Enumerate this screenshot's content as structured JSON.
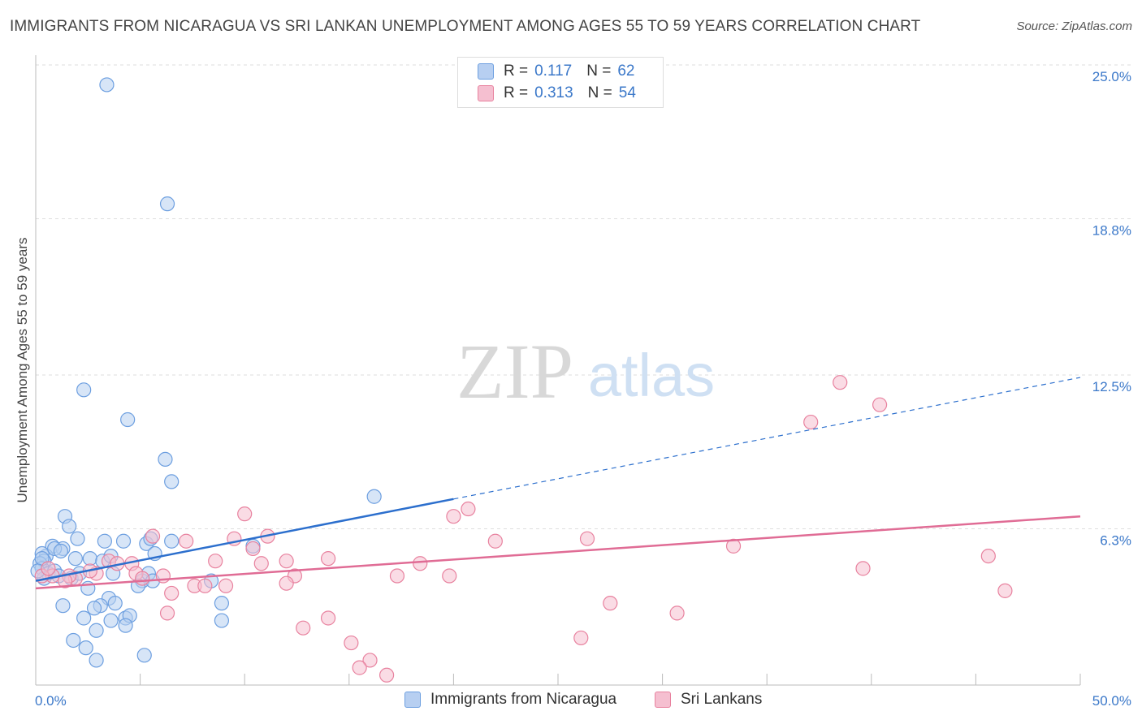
{
  "header": {
    "title": "IMMIGRANTS FROM NICARAGUA VS SRI LANKAN UNEMPLOYMENT AMONG AGES 55 TO 59 YEARS CORRELATION CHART",
    "source": "Source: ZipAtlas.com"
  },
  "watermark": {
    "zip": "ZIP",
    "atlas": "atlas"
  },
  "legend": {
    "rows": [
      {
        "r_label": "R = ",
        "r_value": "0.117",
        "n_label": "N = ",
        "n_value": "62"
      },
      {
        "r_label": "R = ",
        "r_value": "0.313",
        "n_label": "N = ",
        "n_value": "54"
      }
    ]
  },
  "chart_data": {
    "type": "scatter",
    "title": "IMMIGRANTS FROM NICARAGUA VS SRI LANKAN UNEMPLOYMENT AMONG AGES 55 TO 59 YEARS CORRELATION CHART",
    "xlabel": "",
    "ylabel": "Unemployment Among Ages 55 to 59 years",
    "xlim": [
      0,
      50
    ],
    "ylim": [
      0,
      25
    ],
    "x_tick_labels": [
      "0.0%",
      "50.0%"
    ],
    "y_tick_values": [
      6.3,
      12.5,
      18.8,
      25.0
    ],
    "y_tick_labels": [
      "6.3%",
      "12.5%",
      "18.8%",
      "25.0%"
    ],
    "grid": true,
    "colors": {
      "blue": "#6d9fe0",
      "blue_fill": "#b7cff1",
      "pink": "#e8829f",
      "pink_fill": "#f5bfd0",
      "blue_line": "#2c6fcd",
      "pink_line": "#e06c95"
    },
    "series": [
      {
        "name": "Immigrants from Nicaragua",
        "color": "blue",
        "trend": {
          "x0": 0,
          "y0": 4.2,
          "x1": 20,
          "y1": 7.5,
          "x_dash_end": 50,
          "y_dash_end": 12.4
        },
        "points": [
          [
            3.4,
            24.2
          ],
          [
            6.3,
            19.4
          ],
          [
            2.3,
            11.9
          ],
          [
            4.4,
            10.7
          ],
          [
            6.2,
            9.1
          ],
          [
            6.5,
            8.2
          ],
          [
            16.2,
            7.6
          ],
          [
            1.4,
            6.8
          ],
          [
            1.6,
            6.4
          ],
          [
            2.0,
            5.9
          ],
          [
            0.8,
            5.6
          ],
          [
            1.3,
            5.5
          ],
          [
            0.5,
            5.2
          ],
          [
            0.3,
            5.3
          ],
          [
            0.4,
            5.0
          ],
          [
            0.2,
            4.9
          ],
          [
            0.3,
            4.7
          ],
          [
            0.6,
            4.5
          ],
          [
            0.9,
            4.6
          ],
          [
            1.1,
            4.4
          ],
          [
            0.4,
            4.3
          ],
          [
            1.7,
            4.3
          ],
          [
            1.9,
            5.1
          ],
          [
            2.6,
            5.1
          ],
          [
            3.2,
            5.0
          ],
          [
            3.3,
            5.8
          ],
          [
            4.2,
            5.8
          ],
          [
            5.3,
            5.7
          ],
          [
            5.5,
            5.9
          ],
          [
            6.5,
            5.8
          ],
          [
            10.4,
            5.6
          ],
          [
            2.1,
            4.5
          ],
          [
            3.7,
            4.5
          ],
          [
            5.1,
            4.2
          ],
          [
            5.4,
            4.5
          ],
          [
            5.6,
            4.2
          ],
          [
            4.9,
            4.0
          ],
          [
            2.5,
            3.9
          ],
          [
            3.5,
            3.5
          ],
          [
            3.8,
            3.3
          ],
          [
            3.1,
            3.2
          ],
          [
            2.8,
            3.1
          ],
          [
            1.3,
            3.2
          ],
          [
            2.3,
            2.7
          ],
          [
            3.6,
            2.6
          ],
          [
            4.3,
            2.7
          ],
          [
            4.5,
            2.8
          ],
          [
            4.3,
            2.4
          ],
          [
            2.9,
            2.2
          ],
          [
            1.8,
            1.8
          ],
          [
            2.4,
            1.5
          ],
          [
            2.9,
            1.0
          ],
          [
            5.2,
            1.2
          ],
          [
            8.4,
            4.2
          ],
          [
            8.9,
            3.3
          ],
          [
            8.9,
            2.6
          ],
          [
            0.9,
            5.5
          ],
          [
            1.2,
            5.4
          ],
          [
            0.3,
            5.1
          ],
          [
            5.7,
            5.3
          ],
          [
            3.6,
            5.2
          ],
          [
            0.1,
            4.6
          ]
        ]
      },
      {
        "name": "Sri Lankans",
        "color": "pink",
        "trend": {
          "x0": 0,
          "y0": 3.9,
          "x1": 50,
          "y1": 6.8
        },
        "points": [
          [
            38.5,
            12.2
          ],
          [
            40.4,
            11.3
          ],
          [
            37.1,
            10.6
          ],
          [
            10.0,
            6.9
          ],
          [
            20.0,
            6.8
          ],
          [
            20.7,
            7.1
          ],
          [
            5.6,
            6.0
          ],
          [
            7.2,
            5.8
          ],
          [
            9.5,
            5.9
          ],
          [
            11.1,
            6.0
          ],
          [
            10.4,
            5.5
          ],
          [
            14.0,
            5.1
          ],
          [
            12.0,
            5.0
          ],
          [
            8.6,
            5.0
          ],
          [
            10.8,
            4.9
          ],
          [
            18.4,
            4.9
          ],
          [
            22.0,
            5.8
          ],
          [
            26.4,
            5.9
          ],
          [
            33.4,
            5.6
          ],
          [
            39.6,
            4.7
          ],
          [
            45.6,
            5.2
          ],
          [
            3.5,
            5.0
          ],
          [
            3.9,
            4.9
          ],
          [
            4.6,
            4.9
          ],
          [
            2.9,
            4.5
          ],
          [
            1.9,
            4.3
          ],
          [
            0.8,
            4.4
          ],
          [
            0.3,
            4.4
          ],
          [
            1.6,
            4.4
          ],
          [
            2.6,
            4.6
          ],
          [
            4.8,
            4.5
          ],
          [
            6.1,
            4.4
          ],
          [
            5.1,
            4.3
          ],
          [
            7.6,
            4.0
          ],
          [
            8.1,
            4.0
          ],
          [
            12.4,
            4.4
          ],
          [
            12.0,
            4.1
          ],
          [
            17.3,
            4.4
          ],
          [
            19.8,
            4.4
          ],
          [
            46.4,
            3.8
          ],
          [
            6.5,
            3.7
          ],
          [
            9.1,
            4.0
          ],
          [
            6.3,
            2.9
          ],
          [
            27.5,
            3.3
          ],
          [
            30.7,
            2.9
          ],
          [
            14.0,
            2.7
          ],
          [
            12.8,
            2.3
          ],
          [
            15.1,
            1.7
          ],
          [
            16.0,
            1.0
          ],
          [
            26.1,
            1.9
          ],
          [
            15.5,
            0.7
          ],
          [
            16.8,
            0.4
          ],
          [
            0.6,
            4.7
          ],
          [
            1.4,
            4.2
          ]
        ]
      }
    ]
  },
  "bottom_legend": [
    "Immigrants from Nicaragua",
    "Sri Lankans"
  ]
}
